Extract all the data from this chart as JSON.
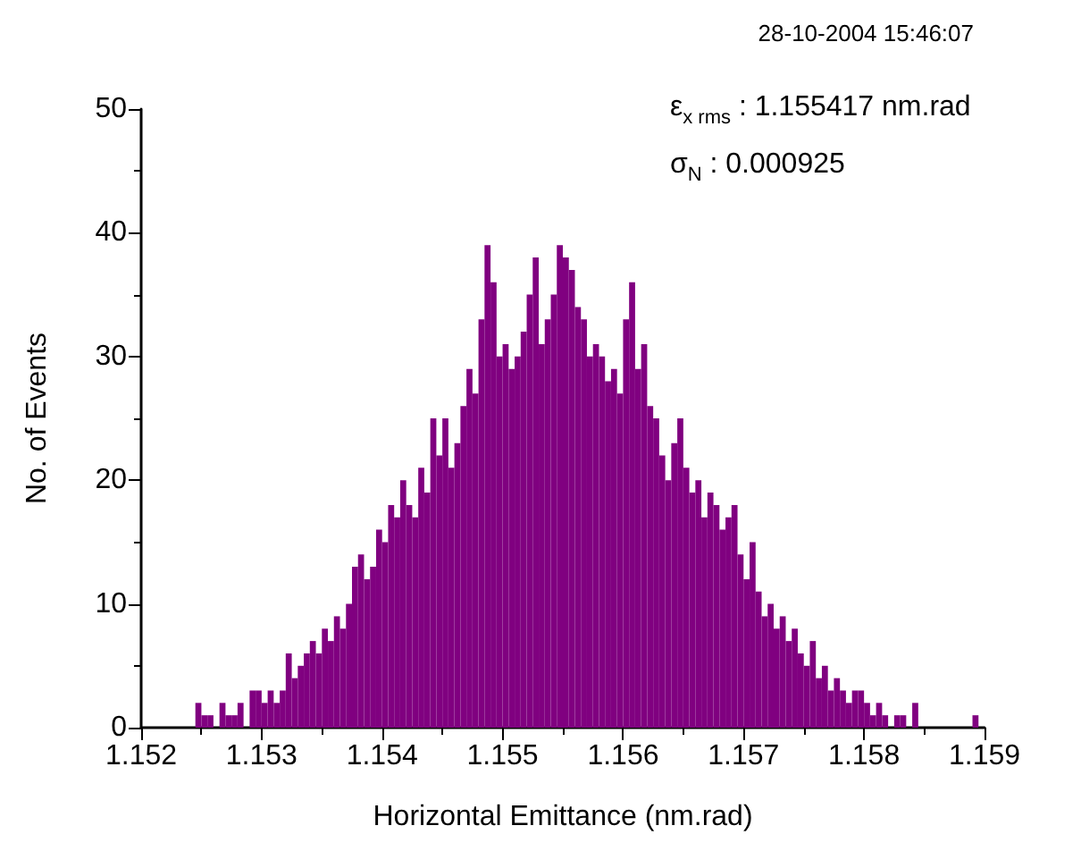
{
  "chart_data": {
    "type": "histogram",
    "xlabel": "Horizontal Emittance (nm.rad)",
    "ylabel": "No. of Events",
    "annotations": [
      "28-10-2004 15:46:07",
      "ε$_{x rms}$ : 1.155417 nm.rad",
      "σ$_{N}$ : 0.000925"
    ],
    "color": "#800080",
    "bins": [
      1.1524,
      1.15245,
      1.1525,
      1.15255,
      1.1526,
      1.15265,
      1.1527,
      1.15275,
      1.1528,
      1.15285,
      1.1529,
      1.15295,
      1.153,
      1.15305,
      1.1531,
      1.15315,
      1.1532,
      1.15325,
      1.1533,
      1.15335,
      1.1534,
      1.15345,
      1.1535,
      1.15355,
      1.1536,
      1.15365,
      1.1537,
      1.15375,
      1.1538,
      1.15385,
      1.1539,
      1.15395,
      1.154,
      1.15405,
      1.1541,
      1.15415,
      1.1542,
      1.15425,
      1.1543,
      1.15435,
      1.1544,
      1.15445,
      1.1545,
      1.15455,
      1.1546,
      1.15465,
      1.1547,
      1.15475,
      1.1548,
      1.15485,
      1.1549,
      1.15495,
      1.155,
      1.15505,
      1.1551,
      1.15515,
      1.1552,
      1.15525,
      1.1553,
      1.15535,
      1.1554,
      1.15545,
      1.1555,
      1.15555,
      1.1556,
      1.15565,
      1.1557,
      1.15575,
      1.1558,
      1.15585,
      1.1559,
      1.15595,
      1.156,
      1.15605,
      1.1561,
      1.15615,
      1.1562,
      1.15625,
      1.1563,
      1.15635,
      1.1564,
      1.15645,
      1.1565,
      1.15655,
      1.1566,
      1.15665,
      1.1567,
      1.15675,
      1.1568,
      1.15685,
      1.1569,
      1.15695,
      1.157,
      1.15705,
      1.1571,
      1.15715,
      1.1572,
      1.15725,
      1.1573,
      1.15735,
      1.1574,
      1.15745,
      1.1575,
      1.15755,
      1.1576,
      1.15765,
      1.1577,
      1.15775,
      1.1578,
      1.15785,
      1.1579,
      1.15795,
      1.158,
      1.15805,
      1.1581,
      1.15815,
      1.1582,
      1.15825,
      1.1583,
      1.15835,
      1.1584,
      1.15845,
      1.1585,
      1.15855,
      1.1586,
      1.15865,
      1.1587,
      1.15875,
      1.1588,
      1.15885,
      1.1589,
      1.15895,
      1.159
    ],
    "values": [
      0,
      2,
      1,
      1,
      0,
      2,
      1,
      1,
      2,
      0,
      3,
      3,
      2,
      3,
      2,
      3,
      6,
      4,
      5,
      6,
      7,
      6,
      8,
      7,
      9,
      8,
      10,
      13,
      14,
      12,
      13,
      16,
      15,
      18,
      17,
      20,
      18,
      17,
      21,
      19,
      25,
      22,
      25,
      21,
      23,
      26,
      29,
      27,
      33,
      39,
      36,
      30,
      31,
      29,
      30,
      32,
      35,
      38,
      31,
      33,
      35,
      39,
      38,
      37,
      34,
      33,
      30,
      31,
      30,
      28,
      29,
      27,
      33,
      36,
      29,
      31,
      26,
      25,
      22,
      20,
      23,
      25,
      21,
      19,
      20,
      17,
      19,
      18,
      16,
      17,
      18,
      14,
      12,
      15,
      11,
      9,
      10,
      8,
      9,
      7,
      8,
      6,
      5,
      7,
      4,
      5,
      3,
      4,
      3,
      2,
      3,
      3,
      2,
      1,
      2,
      1,
      0,
      1,
      1,
      0,
      2,
      0,
      0,
      0,
      0,
      0,
      0,
      0,
      0,
      0,
      1,
      0
    ],
    "xlim": [
      1.152,
      1.159
    ],
    "xticks": [
      1.152,
      1.153,
      1.154,
      1.155,
      1.156,
      1.157,
      1.158,
      1.159
    ],
    "ylim": [
      0,
      50
    ],
    "yticks": [
      0,
      10,
      20,
      30,
      40,
      50
    ],
    "grid": false
  }
}
